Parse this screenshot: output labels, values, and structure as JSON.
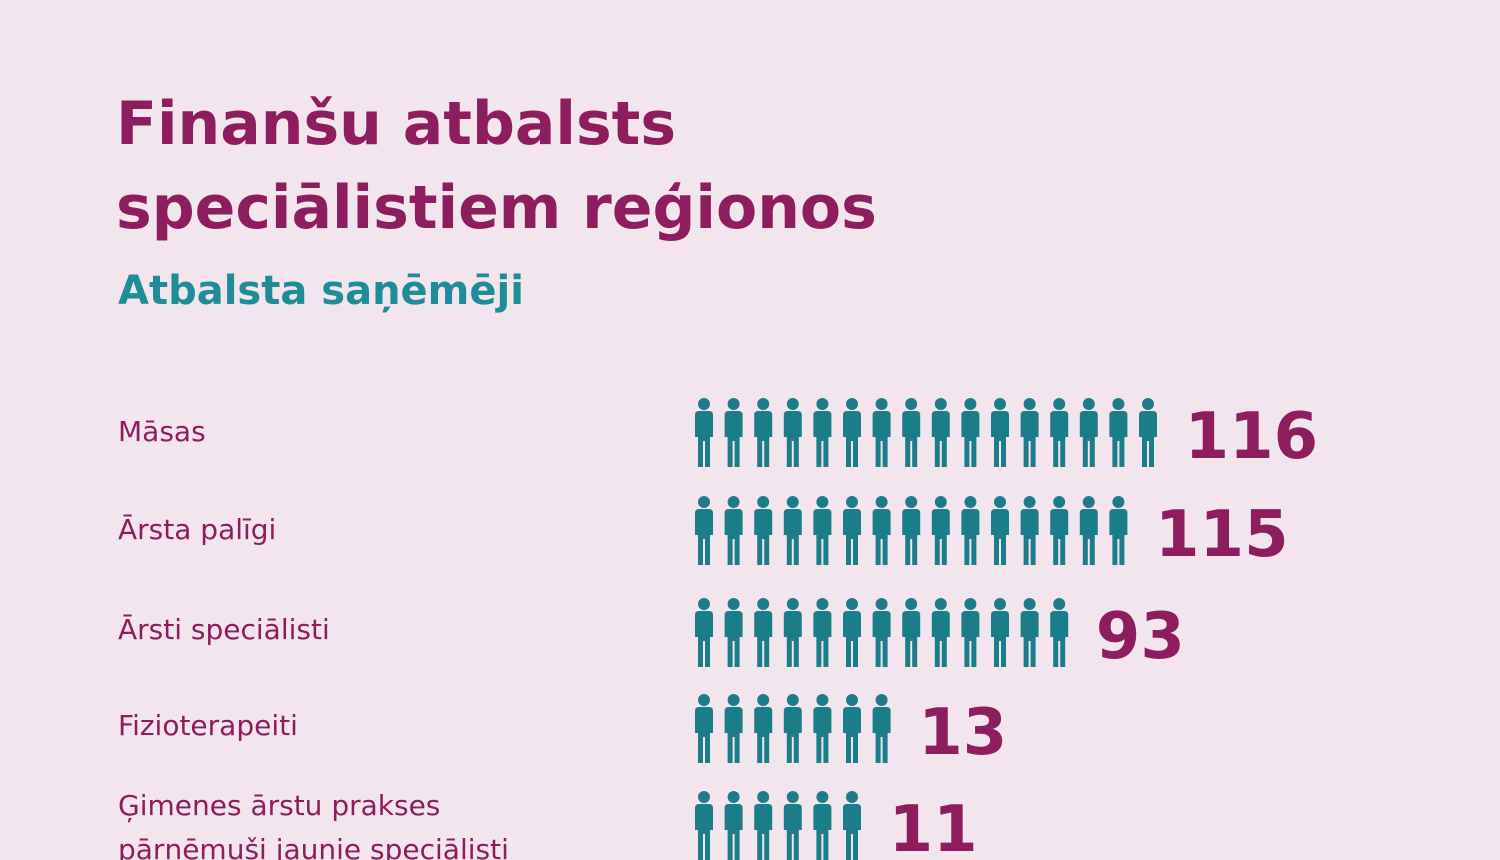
{
  "chart_data": {
    "type": "pictogram",
    "title": "Finanšu atbalsts speciālistiem reģionos",
    "subtitle": "Atbalsta saņēmēji",
    "categories": [
      "Māsas",
      "Ārsta palīgi",
      "Ārsti speciālisti",
      "Fizioterapeiti",
      "Ģimenes ārstu prakses pārņēmuši jaunie speciālisti"
    ],
    "values": [
      116,
      115,
      93,
      13,
      11
    ],
    "color": "#1c7d8a"
  }
}
